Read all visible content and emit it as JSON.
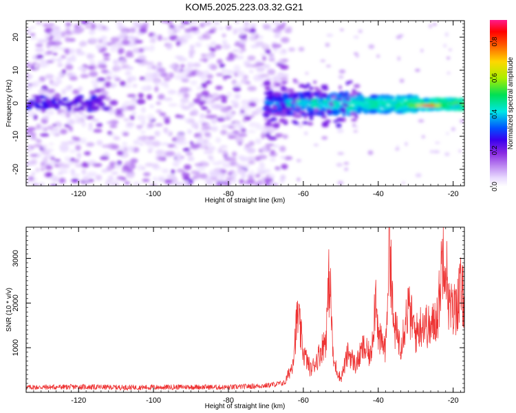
{
  "title": "KOM5.2025.223.03.32.G21",
  "chart_data": [
    {
      "type": "heatmap",
      "name": "spectrogram",
      "xlabel": "Height of straight line (km)",
      "ylabel": "Frequency (Hz)",
      "xlim": [
        -134,
        -17
      ],
      "ylim": [
        -25,
        25
      ],
      "xticks": [
        -120,
        -100,
        -80,
        -60,
        -40,
        -20
      ],
      "yticks": [
        -20,
        -10,
        0,
        10,
        20
      ],
      "colorbar": {
        "label": "Normalized spectral amplitude",
        "range": [
          0,
          0.92
        ],
        "ticks": [
          0.0,
          0.2,
          0.4,
          0.6,
          0.8
        ],
        "tick_labels": [
          "0.0",
          "0.2",
          "0.4",
          "0.6",
          "0.8"
        ]
      },
      "features": {
        "noise_region_km": [
          -134,
          -68
        ],
        "noise_amplitude": 0.08,
        "signal_band_freq_hz": [
          -3,
          3
        ],
        "signal_peak_km": -27,
        "signal_peak_freq_hz": -0.7,
        "signal_peak_amplitude": 0.9
      }
    },
    {
      "type": "line",
      "name": "snr",
      "xlabel": "Height of straight line (km)",
      "ylabel": "SNR (10 * v/v)",
      "xlim": [
        -134,
        -17
      ],
      "ylim": [
        0,
        3700
      ],
      "xticks": [
        -120,
        -100,
        -80,
        -60,
        -40,
        -20
      ],
      "yticks": [
        1000,
        2000,
        3000
      ],
      "series": [
        {
          "name": "SNR",
          "color": "#ee3333",
          "x": [
            -134,
            -120,
            -110,
            -100,
            -90,
            -80,
            -70,
            -65,
            -63,
            -61.5,
            -60,
            -58,
            -56,
            -54,
            -53,
            -52,
            -50,
            -48,
            -46,
            -44,
            -42,
            -40.5,
            -40,
            -38,
            -37,
            -36,
            -34,
            -32,
            -30,
            -28,
            -26,
            -24,
            -22.5,
            -21,
            -20,
            -19,
            -18,
            -17
          ],
          "values": [
            100,
            110,
            100,
            100,
            110,
            100,
            140,
            200,
            600,
            1750,
            900,
            500,
            800,
            1200,
            2700,
            700,
            300,
            900,
            600,
            1000,
            800,
            2400,
            1200,
            1000,
            3700,
            1500,
            1100,
            1900,
            1300,
            1600,
            1400,
            1800,
            3450,
            1900,
            1800,
            2000,
            2300,
            2000
          ]
        }
      ]
    }
  ]
}
